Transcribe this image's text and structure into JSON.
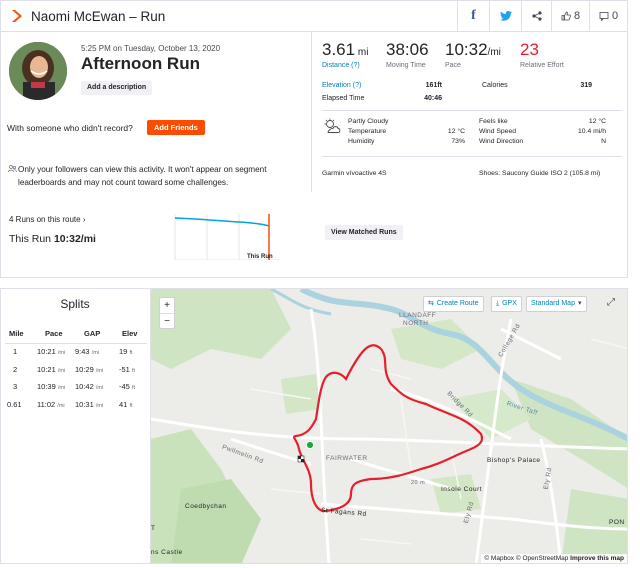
{
  "header": {
    "title": "Naomi McEwan – Run",
    "kudos_count": "8",
    "comment_count": "0"
  },
  "activity": {
    "datetime": "5:25 PM on Tuesday, October 13, 2020",
    "name": "Afternoon Run",
    "add_description": "Add a description",
    "with_someone": "With someone who didn't record?",
    "add_friends": "Add Friends",
    "privacy": "Only your followers can view this activity. It won't appear on segment leaderboards and may not count toward some challenges."
  },
  "stats": {
    "distance": {
      "value": "3.61",
      "unit": "mi",
      "label": "Distance (?)"
    },
    "moving_time": {
      "value": "38:06",
      "label": "Moving Time"
    },
    "pace": {
      "value": "10:32",
      "unit": "/mi",
      "label": "Pace"
    },
    "relative_effort": {
      "value": "23",
      "label": "Relative Effort"
    },
    "elevation_label": "Elevation (?)",
    "elevation_value": "161ft",
    "calories_label": "Calories",
    "calories_value": "319",
    "elapsed_label": "Elapsed Time",
    "elapsed_value": "40:46"
  },
  "weather": {
    "condition": "Partly Cloudy",
    "temperature_label": "Temperature",
    "temperature_value": "12 °C",
    "humidity_label": "Humidity",
    "humidity_value": "73%",
    "feels_like_label": "Feels like",
    "feels_like_value": "12 °C",
    "wind_speed_label": "Wind Speed",
    "wind_speed_value": "10.4 mi/h",
    "wind_direction_label": "Wind Direction",
    "wind_direction_value": "N"
  },
  "device": {
    "device": "Garmin vívoactive 4S",
    "shoes": "Shoes: Saucony Guide ISO 2 (105.8 mi)"
  },
  "matched": {
    "title": "4 Runs on this route",
    "this_run_label": "This Run",
    "this_run_pace": "10:32/mi",
    "this_run_tag": "This Run",
    "view_button": "View Matched Runs"
  },
  "splits": {
    "title": "Splits",
    "headers": [
      "Mile",
      "Pace",
      "GAP",
      "Elev"
    ],
    "rows": [
      {
        "mile": "1",
        "pace": "10:21",
        "gap": "9:43",
        "elev": "19"
      },
      {
        "mile": "2",
        "pace": "10:21",
        "gap": "10:29",
        "elev": "-51"
      },
      {
        "mile": "3",
        "pace": "10:39",
        "gap": "10:42",
        "elev": "-45"
      },
      {
        "mile": "0.61",
        "pace": "11:02",
        "gap": "10:31",
        "elev": "41"
      }
    ],
    "pace_unit": "/mi",
    "elev_unit": "ft"
  },
  "map": {
    "create_route": "Create Route",
    "gpx": "GPX",
    "map_type": "Standard Map",
    "zoom_in": "+",
    "zoom_out": "−",
    "attribution_mapbox": "© Mapbox",
    "attribution_osm": "© OpenStreetMap",
    "improve": "Improve this map",
    "labels": {
      "llandaff": "LLANDAFF",
      "north": "NORTH",
      "fairwater": "FAIRWATER",
      "bishops_palace": "Bishop's Palace",
      "insole_court": "Insole Court",
      "coedbychan": "Coedbychan",
      "river_taff": "River Taff",
      "bridge_rd": "Bridge Rd",
      "college_rd": "College Rd",
      "ely_rd": "Ely Rd",
      "pwllmelin_rd": "Pwllmelin Rd",
      "st_fagans_rd": "St Fagans Rd",
      "castle": "ns Castle",
      "pon": "PON",
      "st": "T",
      "elev_20m": "20 m"
    }
  },
  "colors": {
    "strava_orange": "#fc4c02",
    "route_red": "#e5202e",
    "link_blue": "#007fb6",
    "start_green": "#20a544"
  }
}
